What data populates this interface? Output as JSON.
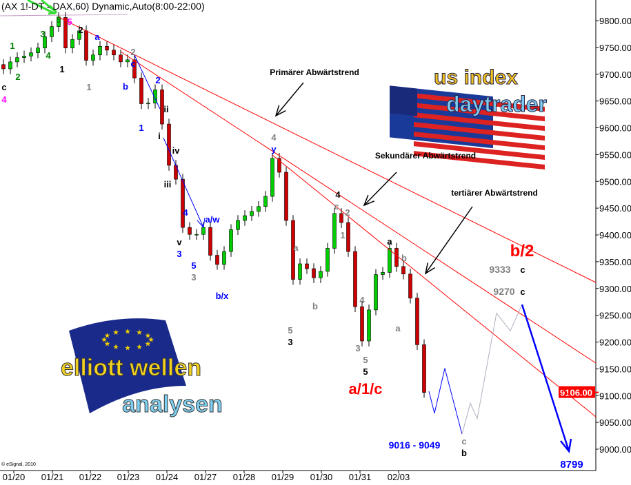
{
  "header": {
    "title": "(AX 1!-DT - DAX,60) Dynamic,Auto(8:00-22:00)"
  },
  "footer": {
    "copyright": "© eSignal, 2010"
  },
  "logos": {
    "us": "us index daytrader",
    "eu": "elliott wellen analysen"
  },
  "chart_data": {
    "type": "candlestick",
    "title": "(AX 1!-DT - DAX,60) Dynamic,Auto(8:00-22:00)",
    "x_ticks": [
      "01/20",
      "01/21",
      "01/22",
      "01/23",
      "01/24",
      "01/27",
      "01/28",
      "01/29",
      "01/30",
      "01/31",
      "02/03"
    ],
    "y_ticks": [
      9000,
      9050,
      9100,
      9150,
      9200,
      9250,
      9300,
      9350,
      9400,
      9450,
      9500,
      9550,
      9600,
      9650,
      9700,
      9750,
      9800
    ],
    "ylim": [
      8960,
      9830
    ],
    "last_price": "9106.00",
    "closes": [
      9710,
      9723,
      9731,
      9734,
      9740,
      9749,
      9770,
      9789,
      9806,
      9749,
      9765,
      9781,
      9726,
      9736,
      9752,
      9745,
      9736,
      9723,
      9727,
      9693,
      9645,
      9646,
      9671,
      9607,
      9530,
      9504,
      9414,
      9401,
      9401,
      9414,
      9362,
      9345,
      9369,
      9410,
      9427,
      9436,
      9444,
      9453,
      9472,
      9543,
      9517,
      9427,
      9317,
      9346,
      9337,
      9320,
      9332,
      9375,
      9440,
      9423,
      9369,
      9266,
      9202,
      9260,
      9326,
      9330,
      9375,
      9341,
      9327,
      9282,
      9195,
      9106
    ],
    "projection_blue_prices": [
      9108,
      9067,
      9151,
      9028
    ],
    "projection_gray_prices": [
      9028,
      9086,
      9057,
      9254,
      9221,
      9270
    ],
    "projection_target": 8799,
    "trendlines": [
      "Primärer Abwärtstrend",
      "Sekundärer Abwärtstrend",
      "tertiärer Abwärtstrend"
    ],
    "wave_labels": [
      {
        "t": "c",
        "c": "#000000"
      },
      {
        "t": "4",
        "c": "#ff00ff"
      },
      {
        "t": "1",
        "c": "#008000"
      },
      {
        "t": "2",
        "c": "#008000"
      },
      {
        "t": "3",
        "c": "#008000"
      },
      {
        "t": "4",
        "c": "#008000"
      },
      {
        "t": "5",
        "c": "#008000"
      },
      {
        "t": "5",
        "c": "#ff00ff"
      },
      {
        "t": "1",
        "c": "#000000"
      },
      {
        "t": "2",
        "c": "#000000"
      },
      {
        "t": "a",
        "c": "#0000ff"
      },
      {
        "t": "1",
        "c": "#808080"
      },
      {
        "t": "2",
        "c": "#808080"
      },
      {
        "t": "c",
        "c": "#0000ff"
      },
      {
        "t": "b",
        "c": "#0000ff"
      },
      {
        "t": "1",
        "c": "#0000ff"
      },
      {
        "t": "2",
        "c": "#0000ff"
      },
      {
        "t": "ii",
        "c": "#000000"
      },
      {
        "t": "i",
        "c": "#000000"
      },
      {
        "t": "iv",
        "c": "#000000"
      },
      {
        "t": "iii",
        "c": "#000000"
      },
      {
        "t": "v",
        "c": "#000000"
      },
      {
        "t": "3",
        "c": "#0000ff"
      },
      {
        "t": "4",
        "c": "#0000ff"
      },
      {
        "t": "5",
        "c": "#0000ff"
      },
      {
        "t": "3",
        "c": "#808080"
      },
      {
        "t": "a/w",
        "c": "#0000ff"
      },
      {
        "t": "b/x",
        "c": "#0000ff"
      },
      {
        "t": "4",
        "c": "#808080"
      },
      {
        "t": "y",
        "c": "#0000ff"
      },
      {
        "t": "4",
        "c": "#000000"
      },
      {
        "t": "c",
        "c": "#808080"
      },
      {
        "t": "2",
        "c": "#808080"
      },
      {
        "t": "1",
        "c": "#808080"
      },
      {
        "t": "a",
        "c": "#808080"
      },
      {
        "t": "b",
        "c": "#808080"
      },
      {
        "t": "5",
        "c": "#808080"
      },
      {
        "t": "3",
        "c": "#000000"
      },
      {
        "t": "4",
        "c": "#808080"
      },
      {
        "t": "3",
        "c": "#808080"
      },
      {
        "t": "5",
        "c": "#808080"
      },
      {
        "t": "5",
        "c": "#000000"
      },
      {
        "t": "a",
        "c": "#000000"
      },
      {
        "t": "b",
        "c": "#808080"
      },
      {
        "t": "a",
        "c": "#808080"
      },
      {
        "t": "c",
        "c": "#808080"
      },
      {
        "t": "b",
        "c": "#000000"
      },
      {
        "t": "c",
        "c": "#000000"
      },
      {
        "t": "c",
        "c": "#000000"
      }
    ],
    "big_labels": [
      {
        "t": "a/1/c",
        "c": "#ff0000"
      },
      {
        "t": "b/2",
        "c": "#ff0000"
      },
      {
        "t": "9333",
        "c": "#808080"
      },
      {
        "t": "9270",
        "c": "#808080"
      },
      {
        "t": "9016 - 9049",
        "c": "#0000ff"
      },
      {
        "t": "8799",
        "c": "#0000ff"
      }
    ],
    "colors": {
      "up": "#00cc00",
      "down": "#cc0000",
      "trend": "#ff0000",
      "projection": "#0000ff",
      "projection_alt": "#b0b0c0",
      "last_price_bg": "#ff0000"
    }
  }
}
